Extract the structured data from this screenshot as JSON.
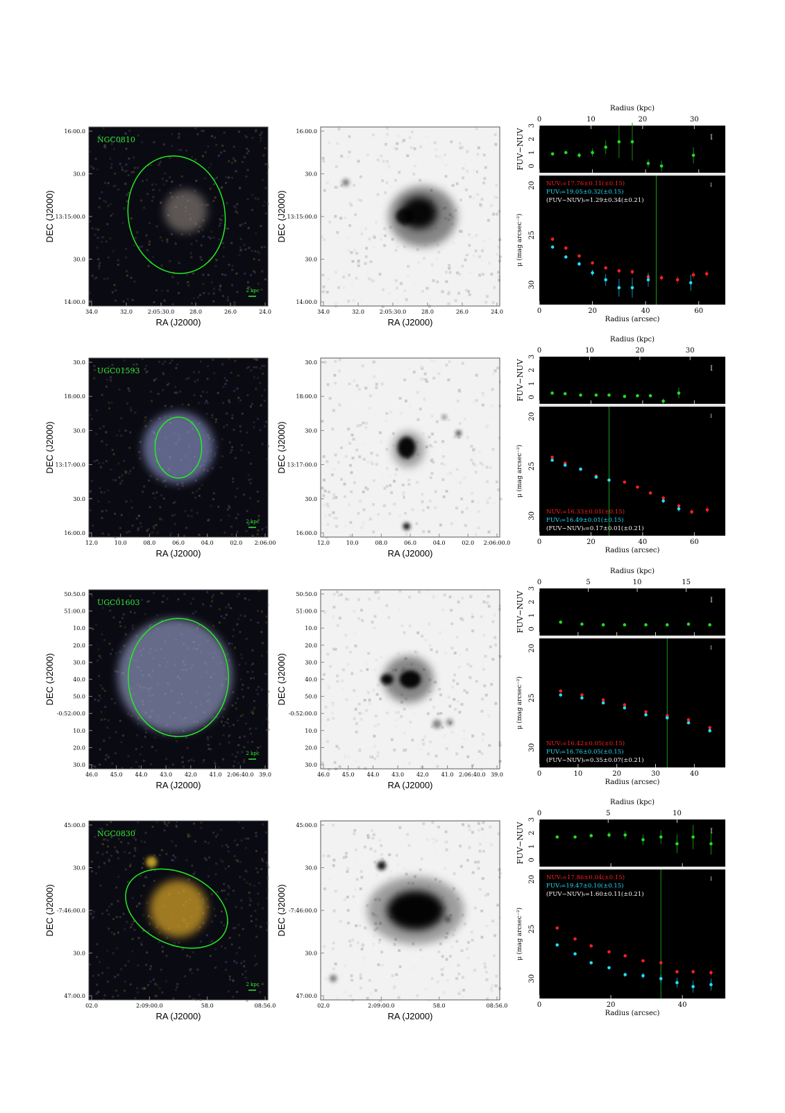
{
  "rows": [
    {
      "name": "NGC0810",
      "color_img": {
        "ra_ticks": [
          "34.0",
          "32.0",
          "2:05:30.0",
          "28.0",
          "26.0",
          "24.0"
        ],
        "dec_ticks": [
          "16:00.0",
          "30.0",
          "13:15:00.0",
          "30.0",
          "14:00.0"
        ],
        "scale": "2 kpc"
      },
      "gray_img": {
        "ra_ticks": [
          "34.0",
          "32.0",
          "2:05:30.0",
          "28.0",
          "26.0",
          "24.0"
        ],
        "dec_ticks": [
          "16:00.0",
          "30.0",
          "13:15:00.0",
          "30.0",
          "14:00.0"
        ]
      },
      "xlabel": "RA (J2000)",
      "ylabel": "DEC (J2000)",
      "profile": {
        "kpc_label": "Radius (kpc)",
        "kpc_ticks": [
          "0",
          "10",
          "20",
          "30"
        ],
        "arcsec_label": "Radius (arcsec)",
        "arcsec_ticks": [
          "0",
          "20",
          "40",
          "60"
        ],
        "color_ylabel": "FUV−NUV",
        "color_yticks": [
          "0",
          "1",
          "2",
          "3"
        ],
        "mu_ylabel": "μ (mag arcsec⁻²)",
        "mu_yticks": [
          "20",
          "25",
          "30"
        ],
        "legend_pos": "top",
        "legend": [
          "NUVₜ=17.76±0.11(±0.15)",
          "FUVₜ=19.05±0.32(±0.15)",
          "(FUV−NUV)ₜ=1.29±0.34(±0.21)"
        ]
      }
    },
    {
      "name": "UGC01593",
      "color_img": {
        "ra_ticks": [
          "12.0",
          "10.0",
          "08.0",
          "06.0",
          "04.0",
          "02.0",
          "2:06:00"
        ],
        "dec_ticks": [
          "30.0",
          "18:00.0",
          "30.0",
          "13:17:00.0",
          "30.0",
          "16:00.0"
        ],
        "scale": "2 kpc"
      },
      "gray_img": {
        "ra_ticks": [
          "12.0",
          "10.0",
          "08.0",
          "06.0",
          "04.0",
          "02.0",
          "2:06:00.0"
        ],
        "dec_ticks": [
          "30.0",
          "18:00.0",
          "30.0",
          "13:17:00.0",
          "30.0",
          "16:00.0"
        ]
      },
      "xlabel": "RA (J2000)",
      "ylabel": "DEC (J2000)",
      "profile": {
        "kpc_label": "Radius (kpc)",
        "kpc_ticks": [
          "0",
          "10",
          "20",
          "30"
        ],
        "arcsec_label": "Radius (arcsec)",
        "arcsec_ticks": [
          "0",
          "20",
          "40",
          "60"
        ],
        "color_ylabel": "FUV−NUV",
        "color_yticks": [
          "0",
          "1",
          "2",
          "3"
        ],
        "mu_ylabel": "μ (mag arcsec⁻²)",
        "mu_yticks": [
          "20",
          "25",
          "30"
        ],
        "legend_pos": "bottom",
        "legend": [
          "NUVₜ=16.33±0.01(±0.15)",
          "FUVₜ=16.49±0.01(±0.15)",
          "(FUV−NUV)ₜ=0.17±0.01(±0.21)"
        ]
      }
    },
    {
      "name": "UGC01603",
      "color_img": {
        "ra_ticks": [
          "46.0",
          "45.0",
          "44.0",
          "43.0",
          "42.0",
          "41.0",
          "2:06:40.0",
          "39.0"
        ],
        "dec_ticks": [
          "50:50.0",
          "51:00.0",
          "10.0",
          "20.0",
          "30.0",
          "40.0",
          "50.0",
          "-0:52:00.0",
          "10.0",
          "20.0",
          "30.0"
        ],
        "scale": "2 kpc"
      },
      "gray_img": {
        "ra_ticks": [
          "46.0",
          "45.0",
          "44.0",
          "43.0",
          "42.0",
          "41.0",
          "2:06:40.0",
          "39.0"
        ],
        "dec_ticks": [
          "50:50.0",
          "51:00.0",
          "10.0",
          "20.0",
          "30.0",
          "40.0",
          "50.0",
          "-0:52:00.0",
          "10.0",
          "20.0",
          "30.0"
        ]
      },
      "xlabel": "RA (J2000)",
      "ylabel": "DEC (J2000)",
      "profile": {
        "kpc_label": "Radius (kpc)",
        "kpc_ticks": [
          "0",
          "5",
          "10",
          "15"
        ],
        "arcsec_label": "Radius (arcsec)",
        "arcsec_ticks": [
          "0",
          "10",
          "20",
          "30",
          "40"
        ],
        "color_ylabel": "FUV−NUV",
        "color_yticks": [
          "0",
          "1",
          "2",
          "3"
        ],
        "mu_ylabel": "μ (mag arcsec⁻²)",
        "mu_yticks": [
          "20",
          "25",
          "30"
        ],
        "legend_pos": "bottom",
        "legend": [
          "NUVₜ=16.42±0.05(±0.15)",
          "FUVₜ=16.76±0.05(±0.15)",
          "(FUV−NUV)ₜ=0.35±0.07(±0.21)"
        ]
      }
    },
    {
      "name": "NGC0830",
      "color_img": {
        "ra_ticks": [
          "02.0",
          "2:09:00.0",
          "58.0",
          "08:56.0"
        ],
        "dec_ticks": [
          "45:00.0",
          "30.0",
          "-7:46:00.0",
          "30.0",
          "47:00.0"
        ],
        "scale": "2 kpc"
      },
      "gray_img": {
        "ra_ticks": [
          "02.0",
          "2:09:00.0",
          "58.0",
          "08:56.0"
        ],
        "dec_ticks": [
          "45:00.0",
          "30.0",
          "-7:46:00.0",
          "30.0",
          "47:00.0"
        ]
      },
      "xlabel": "RA (J2000)",
      "ylabel": "DEC (J2000)",
      "profile": {
        "kpc_label": "Radius (kpc)",
        "kpc_ticks": [
          "0",
          "5",
          "10"
        ],
        "arcsec_label": "Radius (arcsec)",
        "arcsec_ticks": [
          "0",
          "20",
          "40"
        ],
        "color_ylabel": "FUV−NUV",
        "color_yticks": [
          "0",
          "1",
          "2",
          "3"
        ],
        "mu_ylabel": "μ (mag arcsec⁻²)",
        "mu_yticks": [
          "20",
          "25",
          "30"
        ],
        "legend_pos": "top",
        "legend": [
          "NUVₜ=17.86±0.04(±0.15)",
          "FUVₜ=19.47±0.10(±0.15)",
          "(FUV−NUV)ₜ=1.60±0.11(±0.21)"
        ]
      }
    }
  ],
  "colors": {
    "nuv": "#ff2020",
    "fuv": "#20e0ff",
    "color_pts": "#22dd22",
    "label_green": "#33ee33",
    "ellipse": "#22ee22",
    "panel_bg": "#000000"
  },
  "chart_data": [
    {
      "type": "scatter",
      "galaxy": "NGC0810",
      "arcsec_range": [
        0,
        70
      ],
      "kpc_range": [
        0,
        36
      ],
      "color_ylim": [
        -0.5,
        3
      ],
      "mu_ylim": [
        32,
        19
      ],
      "limit_radius_arcsec": 44,
      "color_profile": {
        "r": [
          5,
          10,
          15,
          20,
          25,
          30,
          35,
          41,
          46,
          58
        ],
        "values": [
          0.9,
          1.0,
          0.8,
          1.0,
          1.4,
          1.8,
          1.8,
          0.2,
          0.0,
          0.8
        ],
        "err": [
          0.1,
          0.1,
          0.2,
          0.3,
          0.5,
          1.2,
          1.4,
          0.3,
          0.4,
          0.6
        ]
      },
      "series": [
        {
          "name": "NUV",
          "r": [
            5,
            10,
            15,
            20,
            25,
            30,
            35,
            41,
            46,
            52,
            58,
            63
          ],
          "values": [
            25.4,
            26.3,
            27.1,
            27.8,
            28.3,
            28.6,
            28.7,
            29.2,
            29.3,
            29.5,
            29.0,
            28.9
          ],
          "err": [
            0.05,
            0.05,
            0.1,
            0.1,
            0.15,
            0.2,
            0.25,
            0.3,
            0.3,
            0.4,
            0.35,
            0.35
          ]
        },
        {
          "name": "FUV",
          "r": [
            5,
            10,
            15,
            20,
            25,
            30,
            35,
            41,
            57
          ],
          "values": [
            26.2,
            27.2,
            27.9,
            28.8,
            29.5,
            30.3,
            30.3,
            29.5,
            29.8
          ],
          "err": [
            0.1,
            0.15,
            0.2,
            0.3,
            0.6,
            0.9,
            1.0,
            0.7,
            0.8
          ]
        }
      ]
    },
    {
      "type": "scatter",
      "galaxy": "UGC01593",
      "arcsec_range": [
        0,
        72
      ],
      "kpc_range": [
        0,
        37
      ],
      "color_ylim": [
        -0.5,
        3
      ],
      "mu_ylim": [
        32,
        19
      ],
      "limit_radius_arcsec": 27,
      "color_profile": {
        "r": [
          5,
          10,
          16,
          22,
          27,
          33,
          38,
          43,
          48,
          54
        ],
        "values": [
          0.3,
          0.25,
          0.15,
          0.15,
          0.15,
          0.05,
          0.1,
          0.1,
          -0.3,
          0.3
        ],
        "err": [
          0.05,
          0.05,
          0.05,
          0.05,
          0.05,
          0.08,
          0.1,
          0.1,
          0.2,
          0.4
        ]
      },
      "series": [
        {
          "name": "NUV",
          "r": [
            5,
            10,
            16,
            22,
            27,
            33,
            38,
            43,
            48,
            54,
            59,
            65
          ],
          "values": [
            24.1,
            24.7,
            25.3,
            26.0,
            26.4,
            26.6,
            27.1,
            27.7,
            28.2,
            29.0,
            29.6,
            29.4
          ],
          "err": [
            0.05,
            0.05,
            0.05,
            0.05,
            0.05,
            0.05,
            0.08,
            0.1,
            0.15,
            0.2,
            0.25,
            0.3
          ]
        },
        {
          "name": "FUV",
          "r": [
            5,
            10,
            16,
            22,
            27,
            48,
            54
          ],
          "values": [
            24.4,
            24.9,
            25.3,
            26.1,
            26.4,
            28.5,
            29.3
          ],
          "err": [
            0.05,
            0.05,
            0.05,
            0.05,
            0.05,
            0.2,
            0.3
          ]
        }
      ]
    },
    {
      "type": "scatter",
      "galaxy": "UGC01603",
      "arcsec_range": [
        0,
        48
      ],
      "kpc_range": [
        0,
        19
      ],
      "color_ylim": [
        -0.5,
        3
      ],
      "mu_ylim": [
        32,
        19
      ],
      "limit_radius_arcsec": 33,
      "color_profile": {
        "r": [
          5.5,
          11,
          16.5,
          22,
          27.5,
          33,
          38.5,
          44
        ],
        "values": [
          0.5,
          0.35,
          0.3,
          0.3,
          0.3,
          0.3,
          0.35,
          0.3
        ],
        "err": [
          0.05,
          0.05,
          0.05,
          0.05,
          0.05,
          0.08,
          0.1,
          0.1
        ]
      },
      "series": [
        {
          "name": "NUV",
          "r": [
            5.5,
            11,
            16.5,
            22,
            27.5,
            33,
            38.5,
            44
          ],
          "values": [
            24.3,
            24.7,
            25.2,
            25.7,
            26.4,
            26.8,
            27.2,
            28.0
          ],
          "err": [
            0.05,
            0.05,
            0.05,
            0.05,
            0.08,
            0.1,
            0.15,
            0.2
          ]
        },
        {
          "name": "FUV",
          "r": [
            5.5,
            11,
            16.5,
            22,
            27.5,
            33,
            38.5,
            44
          ],
          "values": [
            24.7,
            25.0,
            25.5,
            26.0,
            26.7,
            27.0,
            27.5,
            28.3
          ],
          "err": [
            0.05,
            0.05,
            0.05,
            0.05,
            0.08,
            0.1,
            0.15,
            0.2
          ]
        }
      ]
    },
    {
      "type": "scatter",
      "galaxy": "NGC0830",
      "arcsec_range": [
        0,
        52
      ],
      "kpc_range": [
        0,
        13.5
      ],
      "color_ylim": [
        -0.5,
        3
      ],
      "mu_ylim": [
        32,
        19
      ],
      "limit_radius_arcsec": 34,
      "color_profile": {
        "r": [
          5,
          10,
          14.5,
          19.5,
          24,
          29,
          34,
          38.5,
          43,
          48
        ],
        "values": [
          1.7,
          1.7,
          1.8,
          1.85,
          1.85,
          1.5,
          1.7,
          1.2,
          1.7,
          1.2
        ],
        "err": [
          0.05,
          0.1,
          0.15,
          0.2,
          0.3,
          0.4,
          0.5,
          0.7,
          0.9,
          0.8
        ]
      },
      "series": [
        {
          "name": "NUV",
          "r": [
            5,
            10,
            14.5,
            19.5,
            24,
            29,
            34,
            38.5,
            43,
            48
          ],
          "values": [
            24.9,
            26.0,
            26.7,
            27.3,
            27.7,
            28.2,
            28.4,
            29.3,
            29.3,
            29.4
          ],
          "err": [
            0.03,
            0.05,
            0.05,
            0.08,
            0.1,
            0.1,
            0.15,
            0.2,
            0.2,
            0.25
          ]
        },
        {
          "name": "FUV",
          "r": [
            5,
            10,
            14.5,
            19.5,
            24,
            29,
            34,
            38.5,
            43,
            48
          ],
          "values": [
            26.6,
            27.5,
            28.4,
            28.9,
            29.6,
            29.7,
            30.0,
            30.4,
            30.8,
            30.6
          ],
          "err": [
            0.05,
            0.08,
            0.1,
            0.15,
            0.2,
            0.3,
            0.4,
            0.5,
            0.6,
            0.6
          ]
        }
      ]
    }
  ]
}
